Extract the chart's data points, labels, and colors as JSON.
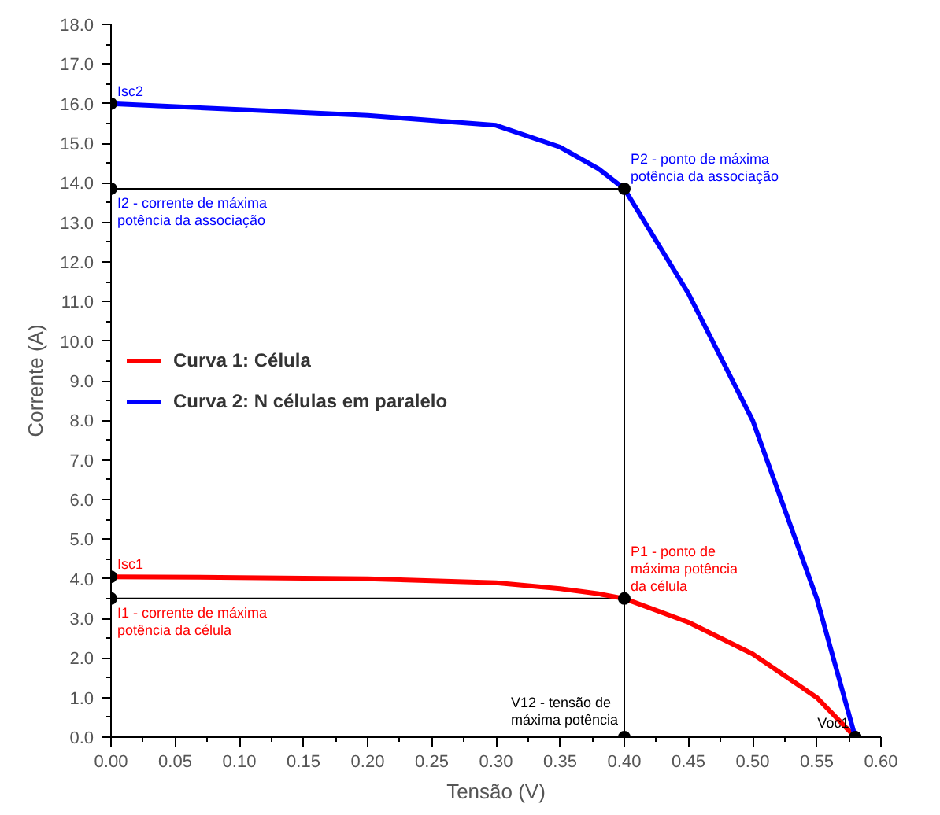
{
  "chart_data": {
    "type": "line",
    "xlabel": "Tensão (V)",
    "ylabel": "Corrente (A)",
    "x": [
      0.0,
      0.1,
      0.2,
      0.3,
      0.35,
      0.38,
      0.4,
      0.45,
      0.5,
      0.55,
      0.58
    ],
    "series": [
      {
        "name": "Curva 1: Célula",
        "color": "#ff0000",
        "values": [
          4.05,
          4.03,
          4.0,
          3.9,
          3.75,
          3.62,
          3.5,
          2.9,
          2.1,
          1.0,
          0.0
        ]
      },
      {
        "name": "Curva 2: N células em paralelo",
        "color": "#0000ff",
        "values": [
          16.0,
          15.85,
          15.7,
          15.45,
          14.9,
          14.35,
          13.85,
          11.2,
          8.0,
          3.5,
          0.0
        ]
      },
      {
        "type": "scatter",
        "color": "#000000",
        "marker": "circle",
        "x": [
          0.0,
          0.0,
          0.0,
          0.0,
          0.4,
          0.4,
          0.4,
          0.58
        ],
        "values": [
          16.0,
          13.85,
          4.05,
          3.5,
          13.85,
          3.5,
          0.0,
          0.0
        ]
      }
    ],
    "ref_lines": [
      {
        "axis": "y",
        "value": 13.85,
        "color": "#000000"
      },
      {
        "axis": "y",
        "value": 3.5,
        "color": "#000000"
      },
      {
        "axis": "x",
        "value": 0.4,
        "color": "#000000"
      }
    ],
    "annotations": [
      {
        "text": "Isc2",
        "x": 0.0,
        "y": 16.0
      },
      {
        "text": "P2 - ponto de máxima\npotência da associação",
        "x": 0.4,
        "y": 13.85
      },
      {
        "text": "I2 - corrente de máxima\npotência da associação",
        "x": 0.0,
        "y": 13.85
      },
      {
        "text": "Isc1",
        "x": 0.0,
        "y": 4.05
      },
      {
        "text": "I1 - corrente de máxima\npotência da célula",
        "x": 0.0,
        "y": 3.5
      },
      {
        "text": "P1 - ponto de\nmáxima potência\nda célula",
        "x": 0.4,
        "y": 3.5
      },
      {
        "text": "V12 - tensão de\nmáxima potência",
        "x": 0.4,
        "y": 0.0
      },
      {
        "text": "Voc1",
        "x": 0.58,
        "y": 0.0
      }
    ],
    "xlim": [
      0.0,
      0.6
    ],
    "ylim": [
      0.0,
      18.0
    ],
    "xticks": [
      {
        "value": 0.0,
        "label": "0.00"
      },
      {
        "value": 0.05,
        "label": "0.05"
      },
      {
        "value": 0.1,
        "label": "0.10"
      },
      {
        "value": 0.15,
        "label": "0.15"
      },
      {
        "value": 0.2,
        "label": "0.20"
      },
      {
        "value": 0.25,
        "label": "0.25"
      },
      {
        "value": 0.3,
        "label": "0.30"
      },
      {
        "value": 0.35,
        "label": "0.35"
      },
      {
        "value": 0.4,
        "label": "0.40"
      },
      {
        "value": 0.45,
        "label": "0.45"
      },
      {
        "value": 0.5,
        "label": "0.50"
      },
      {
        "value": 0.55,
        "label": "0.55"
      },
      {
        "value": 0.6,
        "label": "0.60"
      }
    ],
    "yticks": [
      {
        "value": 0,
        "label": "0.0"
      },
      {
        "value": 1,
        "label": "1.0"
      },
      {
        "value": 2,
        "label": "2.0"
      },
      {
        "value": 3,
        "label": "3.0"
      },
      {
        "value": 4,
        "label": "4.0"
      },
      {
        "value": 5,
        "label": "5.0"
      },
      {
        "value": 6,
        "label": "6.0"
      },
      {
        "value": 7,
        "label": "7.0"
      },
      {
        "value": 8,
        "label": "8.0"
      },
      {
        "value": 9,
        "label": "9.0"
      },
      {
        "value": 10,
        "label": "10.0"
      },
      {
        "value": 11,
        "label": "11.0"
      },
      {
        "value": 12,
        "label": "12.0"
      },
      {
        "value": 13,
        "label": "13.0"
      },
      {
        "value": 14,
        "label": "14.0"
      },
      {
        "value": 15,
        "label": "15.0"
      },
      {
        "value": 16,
        "label": "16.0"
      },
      {
        "value": 17,
        "label": "17.0"
      },
      {
        "value": 18,
        "label": "18.0"
      }
    ],
    "grid": false,
    "legend": "left",
    "line_style": "solid"
  }
}
